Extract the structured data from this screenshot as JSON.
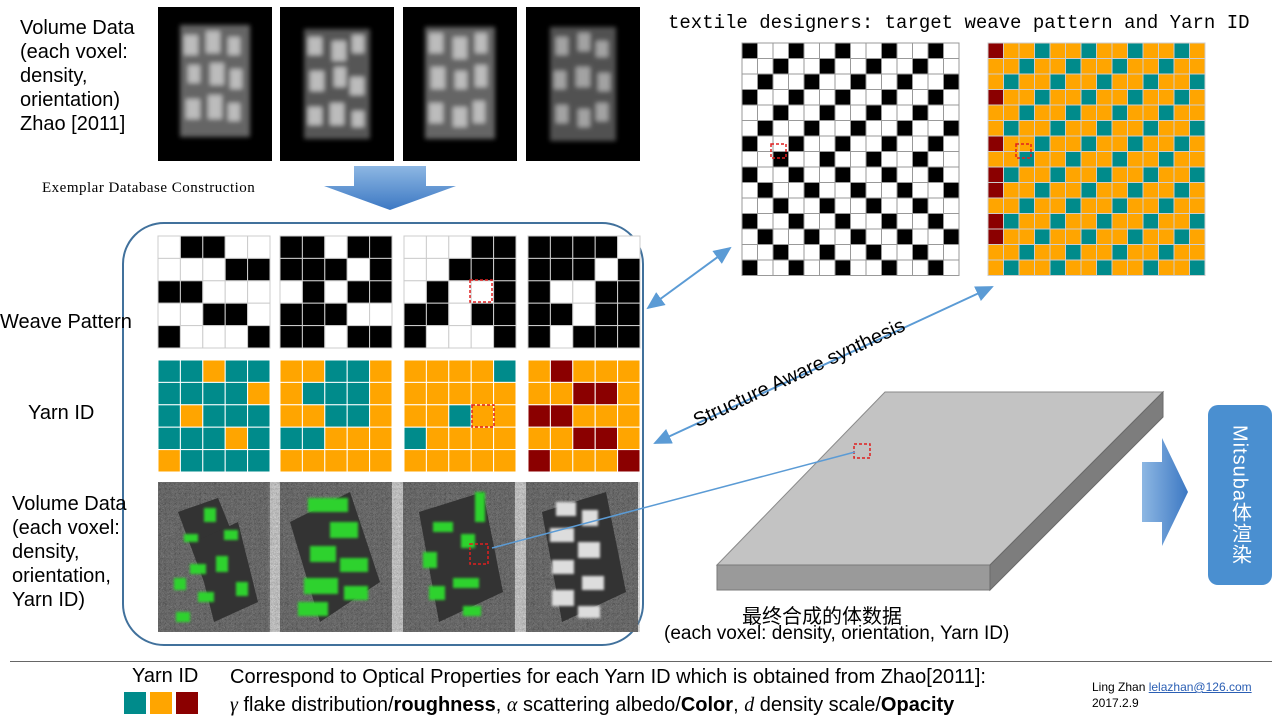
{
  "top_left_label": [
    "Volume Data",
    "(each voxel:",
    "density,",
    "orientation)",
    "Zhao [2011]"
  ],
  "exemplar_label": "Exemplar Database Construction",
  "textile_title": "textile designers: target weave pattern and Yarn ID",
  "row_labels": {
    "weave": "Weave Pattern",
    "yarn": "Yarn ID",
    "volume": [
      "Volume Data",
      "(each voxel:",
      "density,",
      "orientation,",
      "Yarn ID)"
    ]
  },
  "synthesis_label": "Structure Aware synthesis",
  "final_label_cn": "最终合成的体数据",
  "final_label_en": "(each voxel: density, orientation, Yarn ID)",
  "mitsuba_label": "Mitsuba体渲染",
  "footer": {
    "yarn_label": "Yarn ID",
    "line1": "Correspond to Optical Properties for each Yarn ID which is obtained from Zhao[2011]:",
    "gamma": "γ",
    "part1": " flake distribution/",
    "roughness": "roughness",
    "alpha_sep": ", ",
    "alpha": "α",
    "part2": " scattering albedo/",
    "color": "Color",
    "d_sep": ", ",
    "d": "d",
    "part3": " density scale/",
    "opacity": "Opacity",
    "author": "Ling Zhan",
    "email": "lelazhan@126.com",
    "date": "2017.2.9"
  },
  "colors": {
    "teal": "#008b8b",
    "orange": "#ffa500",
    "maroon": "#8b0000",
    "arrow_blue": "#5b9bd5",
    "box_border": "#41719c",
    "marker_red": "#e02020"
  }
}
